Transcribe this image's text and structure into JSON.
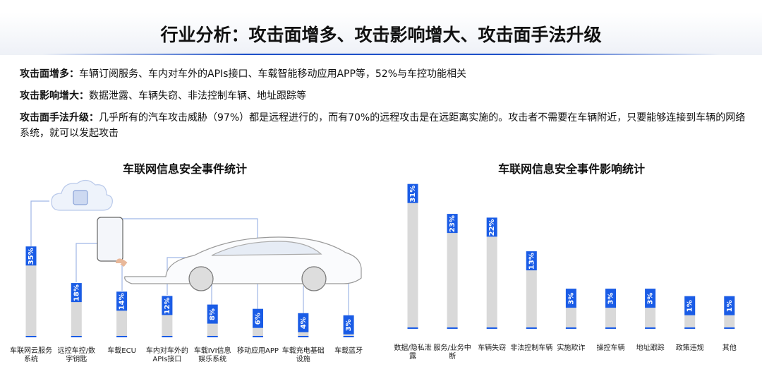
{
  "title": "行业分析：攻击面增多、攻击影响增大、攻击面手法升级",
  "points": [
    {
      "label": "攻击面增多：",
      "text": "车辆订阅服务、车内对车外的APIs接口、车载智能移动应用APP等，52%与车控功能相关"
    },
    {
      "label": "攻击影响增大：",
      "text": "数据泄露、车辆失窃、非法控制车辆、地址跟踪等"
    },
    {
      "label": "攻击面手法升级：",
      "text": "几乎所有的汽车攻击威胁（97%）都是远程进行的，而有70%的远程攻击是在远距离实施的。攻击者不需要在车辆附近，只要能够连接到车辆的网络系统，就可以发起攻击"
    }
  ],
  "chart_data": [
    {
      "type": "bar",
      "title": "车联网信息安全事件统计",
      "color": "#1a5ce6",
      "categories": [
        "车联网云服务系统",
        "远控车控/数字钥匙",
        "车载ECU",
        "车内对车外的APIs接口",
        "车载IVI信息娱乐系统",
        "移动应用APP",
        "车载充电基础设施",
        "车载蓝牙"
      ],
      "values": [
        35,
        18,
        14,
        12,
        8,
        6,
        4,
        3
      ],
      "value_labels": [
        "35%",
        "18%",
        "14%",
        "12%",
        "8%",
        "6%",
        "4%",
        "3%"
      ]
    },
    {
      "type": "bar",
      "title": "车联网信息安全事件影响统计",
      "color": "#1a5ce6",
      "categories": [
        "数据/隐私泄露",
        "服务/业务中断",
        "车辆失窃",
        "非法控制车辆",
        "实施欺诈",
        "操控车辆",
        "地址跟踪",
        "政策违规",
        "其他"
      ],
      "values": [
        31,
        23,
        22,
        13,
        3,
        3,
        3,
        1,
        1
      ],
      "value_labels": [
        "31%",
        "23%",
        "22%",
        "13%",
        "3%",
        "3%",
        "3%",
        "1%",
        "1%"
      ]
    }
  ]
}
